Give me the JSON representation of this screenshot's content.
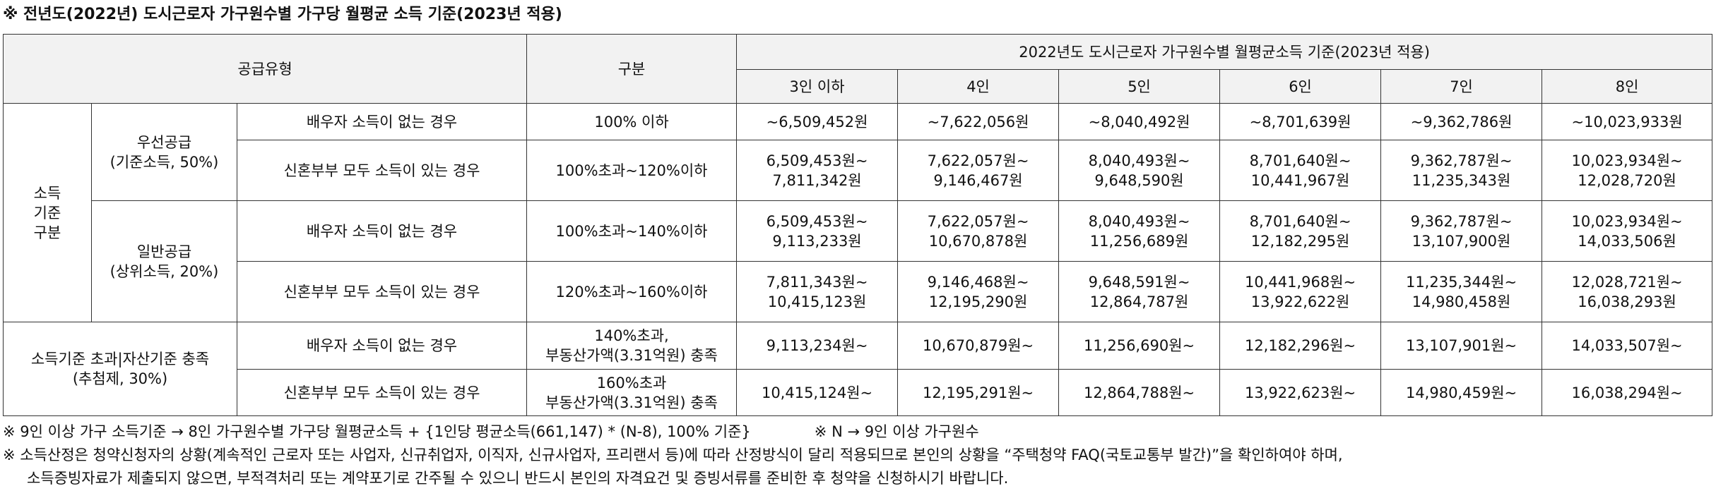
{
  "title": "※ 전년도(2022년) 도시근로자 가구원수별 가구당 월평균 소득 기준(2023년 적용)",
  "header": {
    "supply_type": "공급유형",
    "category": "구분",
    "group_title": "2022년도 도시근로자 가구원수별 월평균소득 기준(2023년 적용)",
    "sizes": [
      "3인 이하",
      "4인",
      "5인",
      "6인",
      "7인",
      "8인"
    ]
  },
  "groups": {
    "income_basis": "소득\n기준\n구분",
    "priority": "우선공급\n(기준소득, 50%)",
    "general": "일반공급\n(상위소득, 20%)",
    "lottery": "소득기준 초과|자산기준 충족\n(추첨제, 30%)"
  },
  "rows": [
    {
      "condition": "배우자 소득이 없는 경우",
      "range": "100% 이하",
      "values": [
        "~6,509,452원",
        "~7,622,056원",
        "~8,040,492원",
        "~8,701,639원",
        "~9,362,786원",
        "~10,023,933원"
      ]
    },
    {
      "condition": "신혼부부 모두 소득이 있는 경우",
      "range": "100%초과~120%이하",
      "values": [
        "6,509,453원~\n7,811,342원",
        "7,622,057원~\n9,146,467원",
        "8,040,493원~\n9,648,590원",
        "8,701,640원~\n10,441,967원",
        "9,362,787원~\n11,235,343원",
        "10,023,934원~\n12,028,720원"
      ]
    },
    {
      "condition": "배우자 소득이 없는 경우",
      "range": "100%초과~140%이하",
      "values": [
        "6,509,453원~\n9,113,233원",
        "7,622,057원~\n10,670,878원",
        "8,040,493원~\n11,256,689원",
        "8,701,640원~\n12,182,295원",
        "9,362,787원~\n13,107,900원",
        "10,023,934원~\n14,033,506원"
      ]
    },
    {
      "condition": "신혼부부 모두 소득이 있는 경우",
      "range": "120%초과~160%이하",
      "values": [
        "7,811,343원~\n10,415,123원",
        "9,146,468원~\n12,195,290원",
        "9,648,591원~\n12,864,787원",
        "10,441,968원~\n13,922,622원",
        "11,235,344원~\n14,980,458원",
        "12,028,721원~\n16,038,293원"
      ]
    },
    {
      "condition": "배우자 소득이 없는 경우",
      "range": "140%초과,\n부동산가액(3.31억원) 충족",
      "values": [
        "9,113,234원~",
        "10,670,879원~",
        "11,256,690원~",
        "12,182,296원~",
        "13,107,901원~",
        "14,033,507원~"
      ]
    },
    {
      "condition": "신혼부부 모두 소득이 있는 경우",
      "range": "160%초과\n부동산가액(3.31억원) 충족",
      "values": [
        "10,415,124원~",
        "12,195,291원~",
        "12,864,788원~",
        "13,922,623원~",
        "14,980,459원~",
        "16,038,294원~"
      ]
    }
  ],
  "notes": {
    "note1_a": "※ 9인 이상 가구 소득기준 → 8인 가구원수별 가구당 월평균소득 + {1인당 평균소득(661,147) * (N-8), 100% 기준}",
    "note1_b": "※ N → 9인 이상 가구원수",
    "note2_a": "※ 소득산정은 청약신청자의 상황(계속적인 근로자 또는 사업자, 신규취업자, 이직자, 신규사업자, 프리랜서 등)에 따라 산정방식이 달리 적용되므로 본인의 상황을  “주택청약 FAQ(국토교통부 발간)”을 확인하여야 하며,",
    "note2_b": "소득증빙자료가 제출되지 않으면, 부적격처리 또는 계약포기로 간주될 수 있으니 반드시 본인의 자격요건 및 증빙서류를 준비한 후 청약을 신청하시기 바랍니다."
  }
}
